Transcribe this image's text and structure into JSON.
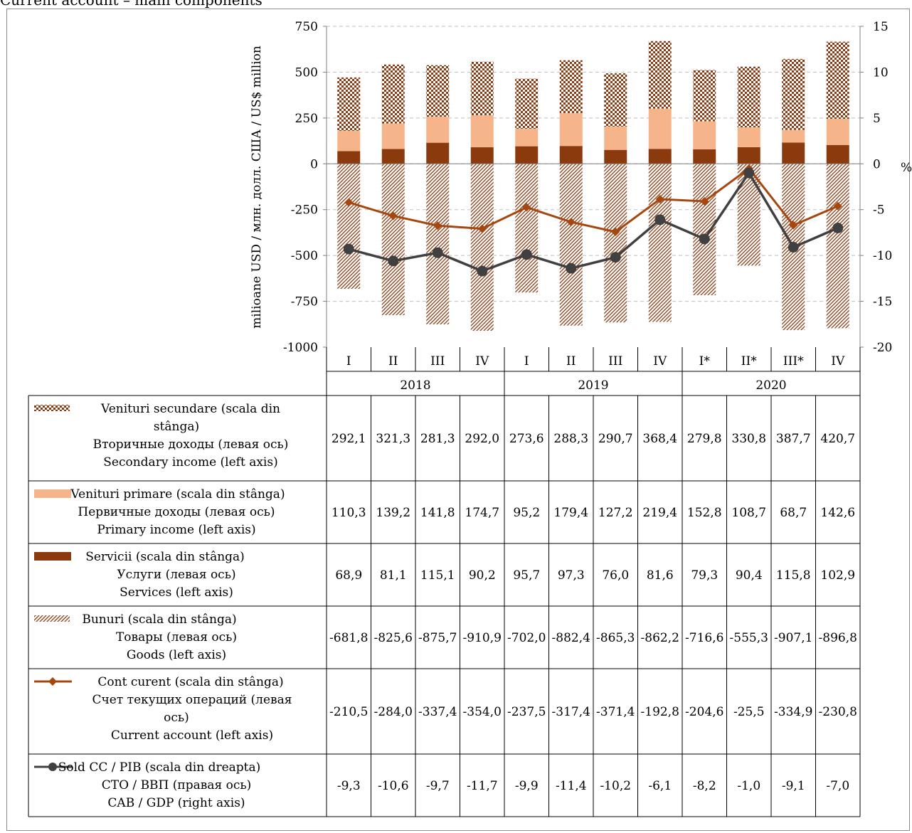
{
  "title": "Current account – main components",
  "chart_data": {
    "type": "bar",
    "y_left_label": "milioane USD / млн. долл. США / US$ million",
    "y_right_label": "%",
    "ylim_left": [
      -1000,
      750
    ],
    "yticks_left": [
      "750",
      "500",
      "250",
      "0",
      "-250",
      "-500",
      "-750",
      "-1000"
    ],
    "ylim_right": [
      -20,
      15
    ],
    "yticks_right": [
      "15",
      "10",
      "5",
      "0",
      "-5",
      "-10",
      "-15",
      "-20"
    ],
    "grid": true,
    "categories": [
      "I",
      "II",
      "III",
      "IV",
      "I",
      "II",
      "III",
      "IV",
      "I*",
      "II*",
      "III*",
      "IV"
    ],
    "years": [
      "2018",
      "2019",
      "2020"
    ],
    "series": [
      {
        "name": "Venituri secundare (scala din stânga)\nВторичные доходы (левая ось)\nSecondary income (left axis)",
        "type": "stacked-bar",
        "axis": "left",
        "pattern": "checker",
        "color": "#8b3a12",
        "values": [
          292.1,
          321.3,
          281.3,
          292.0,
          273.6,
          288.3,
          290.7,
          368.4,
          279.8,
          330.8,
          387.7,
          420.7
        ],
        "labels": [
          "292,1",
          "321,3",
          "281,3",
          "292,0",
          "273,6",
          "288,3",
          "290,7",
          "368,4",
          "279,8",
          "330,8",
          "387,7",
          "420,7"
        ]
      },
      {
        "name": "Venituri primare (scala din stânga)\nПервичные доходы (левая ось)\nPrimary income (left axis)",
        "type": "stacked-bar",
        "axis": "left",
        "pattern": "solid",
        "color": "#f5b48a",
        "values": [
          110.3,
          139.2,
          141.8,
          174.7,
          95.2,
          179.4,
          127.2,
          219.4,
          152.8,
          108.7,
          68.7,
          142.6
        ],
        "labels": [
          "110,3",
          "139,2",
          "141,8",
          "174,7",
          "95,2",
          "179,4",
          "127,2",
          "219,4",
          "152,8",
          "108,7",
          "68,7",
          "142,6"
        ]
      },
      {
        "name": "Servicii (scala din stânga)\nУслуги (левая ось)\nServices (left axis)",
        "type": "stacked-bar",
        "axis": "left",
        "pattern": "solid",
        "color": "#8b3a0e",
        "values": [
          68.9,
          81.1,
          115.1,
          90.2,
          95.7,
          97.3,
          76.0,
          81.6,
          79.3,
          90.4,
          115.8,
          102.9
        ],
        "labels": [
          "68,9",
          "81,1",
          "115,1",
          "90,2",
          "95,7",
          "97,3",
          "76,0",
          "81,6",
          "79,3",
          "90,4",
          "115,8",
          "102,9"
        ]
      },
      {
        "name": "Bunuri (scala din stânga)\nТовары (левая ось)\nGoods (left axis)",
        "type": "stacked-bar",
        "axis": "left",
        "pattern": "diagonal",
        "color": "#8b3a12",
        "values": [
          -681.8,
          -825.6,
          -875.7,
          -910.9,
          -702.0,
          -882.4,
          -865.3,
          -862.2,
          -716.6,
          -555.3,
          -907.1,
          -896.8
        ],
        "labels": [
          "-681,8",
          "-825,6",
          "-875,7",
          "-910,9",
          "-702,0",
          "-882,4",
          "-865,3",
          "-862,2",
          "-716,6",
          "-555,3",
          "-907,1",
          "-896,8"
        ]
      },
      {
        "name": "Cont curent (scala din stânga)\nСчет текущих операций (левая ось)\nCurrent account (left axis)",
        "type": "line",
        "axis": "left",
        "marker": "diamond",
        "color": "#a5470f",
        "values": [
          -210.5,
          -284.0,
          -337.4,
          -354.0,
          -237.5,
          -317.4,
          -371.4,
          -192.8,
          -204.6,
          -25.5,
          -334.9,
          -230.8
        ],
        "labels": [
          "-210,5",
          "-284,0",
          "-337,4",
          "-354,0",
          "-237,5",
          "-317,4",
          "-371,4",
          "-192,8",
          "-204,6",
          "-25,5",
          "-334,9",
          "-230,8"
        ]
      },
      {
        "name": "Sold CC / PIB (scala din dreapta)\nСТО / ВВП (правая ось)\nCAB / GDP (right axis)",
        "type": "line",
        "axis": "right",
        "marker": "circle",
        "color": "#404040",
        "values": [
          -9.3,
          -10.6,
          -9.7,
          -11.7,
          -9.9,
          -11.4,
          -10.2,
          -6.1,
          -8.2,
          -1.0,
          -9.1,
          -7.0
        ],
        "labels": [
          "-9,3",
          "-10,6",
          "-9,7",
          "-11,7",
          "-9,9",
          "-11,4",
          "-10,2",
          "-6,1",
          "-8,2",
          "-1,0",
          "-9,1",
          "-7,0"
        ]
      }
    ]
  }
}
